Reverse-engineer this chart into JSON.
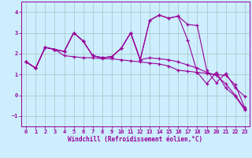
{
  "xlabel": "Windchill (Refroidissement éolien,°C)",
  "xlim": [
    -0.5,
    23.5
  ],
  "ylim": [
    -1.5,
    4.5
  ],
  "xticks": [
    0,
    1,
    2,
    3,
    4,
    5,
    6,
    7,
    8,
    9,
    10,
    11,
    12,
    13,
    14,
    15,
    16,
    17,
    18,
    19,
    20,
    21,
    22,
    23
  ],
  "yticks": [
    -1,
    0,
    1,
    2,
    3,
    4
  ],
  "bg_color": "#cceeff",
  "grid_color": "#aacccc",
  "line_color": "#990099",
  "lines": [
    [
      1.6,
      1.3,
      2.3,
      2.2,
      1.9,
      1.85,
      1.8,
      1.8,
      1.75,
      1.75,
      1.7,
      1.65,
      1.6,
      1.55,
      1.5,
      1.4,
      1.2,
      1.15,
      1.1,
      1.05,
      1.0,
      0.95,
      0.5,
      -0.6
    ],
    [
      1.6,
      1.3,
      2.3,
      2.2,
      2.1,
      3.0,
      2.6,
      1.9,
      1.8,
      1.85,
      2.25,
      3.0,
      1.7,
      3.6,
      3.85,
      3.7,
      3.8,
      3.4,
      3.35,
      1.2,
      0.6,
      1.05,
      0.35,
      -0.05
    ],
    [
      1.6,
      1.3,
      2.3,
      2.2,
      2.1,
      3.0,
      2.6,
      1.9,
      1.8,
      1.85,
      2.25,
      3.0,
      1.7,
      3.6,
      3.85,
      3.7,
      3.8,
      2.65,
      1.1,
      0.55,
      1.1,
      0.35,
      -0.05,
      -0.7
    ],
    [
      1.6,
      1.3,
      2.3,
      2.2,
      2.1,
      3.0,
      2.6,
      1.9,
      1.8,
      1.85,
      2.25,
      3.0,
      1.7,
      1.8,
      1.75,
      1.7,
      1.6,
      1.45,
      1.3,
      1.1,
      0.95,
      0.55,
      0.0,
      -0.65
    ]
  ]
}
